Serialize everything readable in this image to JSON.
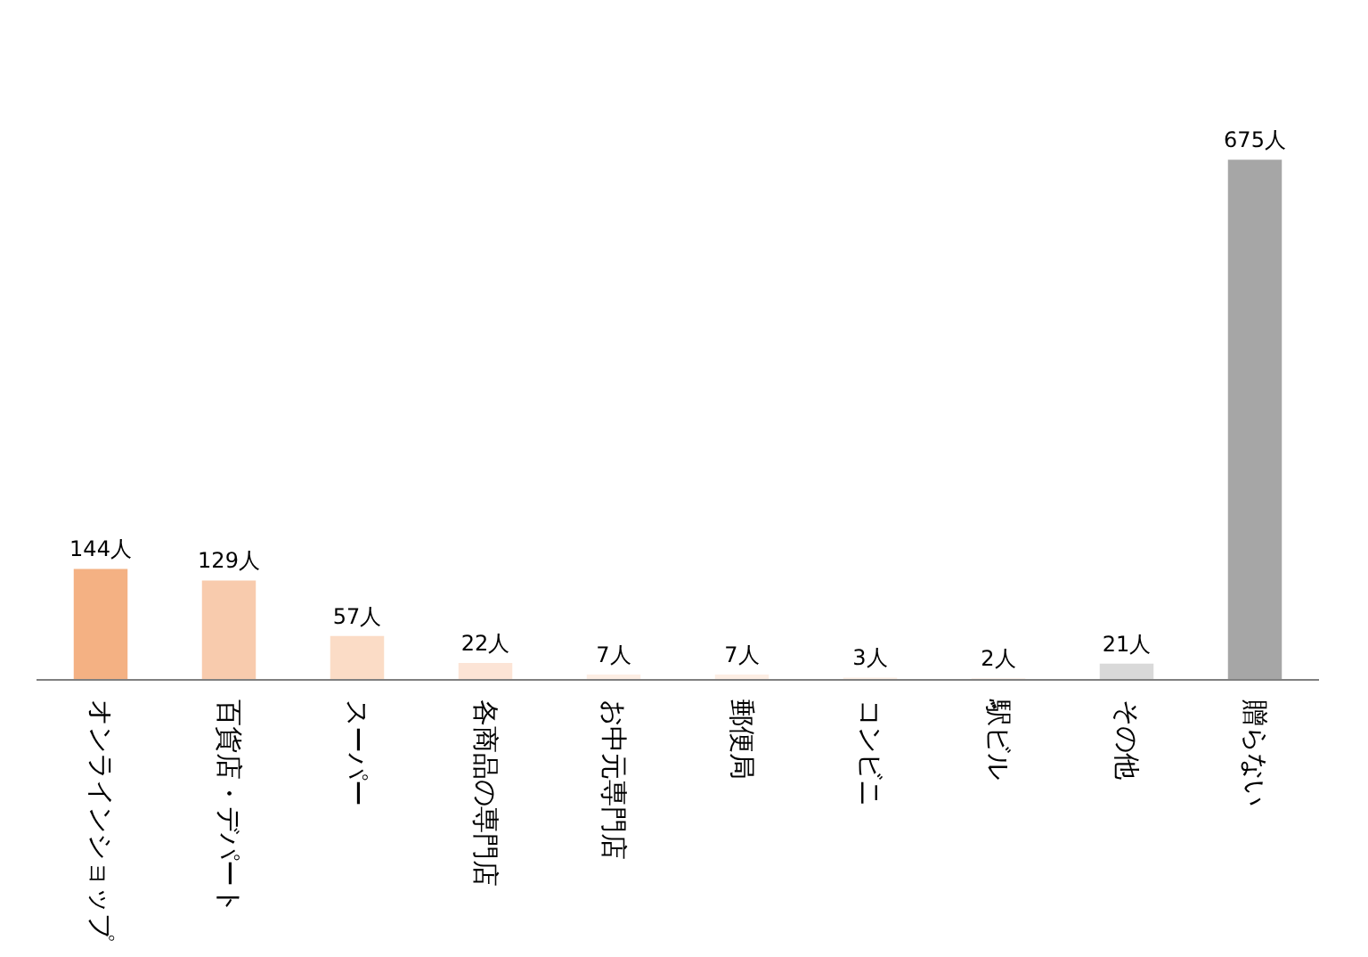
{
  "chart_data": {
    "type": "bar",
    "categories": [
      "オンラインショップ",
      "百貨店・デパート",
      "スーパー",
      "各商品の専門店",
      "お中元専門店",
      "郵便局",
      "コンビニ",
      "駅ビル",
      "その他",
      "贈らない"
    ],
    "values": [
      144,
      129,
      57,
      22,
      7,
      7,
      3,
      2,
      21,
      675
    ],
    "colors": [
      "#f4b183",
      "#f8cbad",
      "#fbdcc6",
      "#fce4d6",
      "#fdeee4",
      "#fdeee4",
      "#fdeee4",
      "#fdeee4",
      "#d9d9d9",
      "#a6a6a6"
    ],
    "value_labels": [
      "144人",
      "129人",
      "57人",
      "22人",
      "7人",
      "7人",
      "3人",
      "2人",
      "21人",
      "675人"
    ],
    "grid": false
  }
}
